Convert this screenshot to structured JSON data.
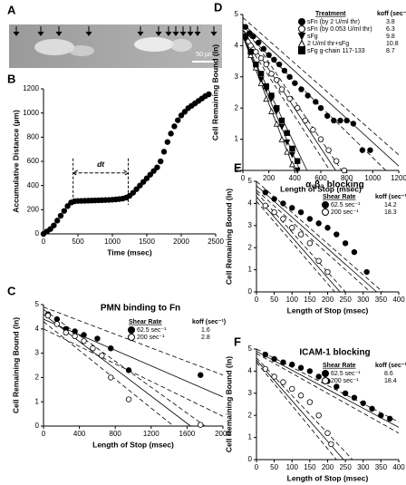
{
  "panel_labels": [
    "A",
    "B",
    "C",
    "D",
    "E",
    "F"
  ],
  "image": {
    "scale_label": "50 µm"
  },
  "chart_data": [
    {
      "type": "scatter",
      "x_label": "Time (msec)",
      "y_label": "Accumulative Distance (µm)",
      "xlim": [
        0,
        2500
      ],
      "xticks": [
        0,
        500,
        1000,
        1500,
        2000,
        2500
      ],
      "ylim": [
        0,
        1200
      ],
      "yticks": [
        0,
        200,
        400,
        600,
        800,
        1000,
        1200
      ],
      "annotation": {
        "text": "dt",
        "x": [
          430,
          1230
        ]
      },
      "series": [
        {
          "color": "#000",
          "marker": "circle",
          "fill": "#000",
          "x": [
            0,
            50,
            100,
            150,
            200,
            250,
            300,
            350,
            400,
            450,
            500,
            550,
            600,
            650,
            700,
            750,
            800,
            850,
            900,
            950,
            1000,
            1050,
            1100,
            1150,
            1200,
            1250,
            1300,
            1350,
            1400,
            1450,
            1500,
            1550,
            1600,
            1650,
            1700,
            1750,
            1800,
            1850,
            1900,
            1950,
            2000,
            2050,
            2100,
            2150,
            2200,
            2250,
            2300,
            2350,
            2400
          ],
          "values": [
            0,
            20,
            40,
            70,
            110,
            150,
            190,
            230,
            260,
            270,
            272,
            273,
            274,
            275,
            276,
            277,
            278,
            279,
            280,
            281,
            283,
            285,
            288,
            292,
            300,
            315,
            340,
            370,
            400,
            430,
            460,
            490,
            520,
            550,
            600,
            680,
            760,
            830,
            890,
            940,
            980,
            1010,
            1040,
            1060,
            1080,
            1100,
            1120,
            1140,
            1155
          ]
        }
      ]
    },
    {
      "type": "scatter",
      "title": "PMN binding to Fn",
      "x_label": "Length of Stop (msec)",
      "y_label": "Cell Remaining Bound (ln)",
      "xlim": [
        0,
        2000
      ],
      "xticks": [
        0,
        400,
        800,
        1200,
        1600,
        2000
      ],
      "ylim": [
        0,
        5
      ],
      "yticks": [
        0,
        1,
        2,
        3,
        4,
        5
      ],
      "legend_title": "Shear Rate",
      "value_title": "koff (sec⁻¹)",
      "series": [
        {
          "name": "62.5 sec⁻¹",
          "koff": 1.6,
          "color": "#000",
          "marker": "circle",
          "fill": "#000",
          "x": [
            50,
            150,
            250,
            350,
            450,
            600,
            750,
            950,
            1750
          ],
          "values": [
            4.6,
            4.4,
            4.0,
            3.9,
            3.75,
            3.6,
            3.2,
            2.3,
            2.1
          ]
        },
        {
          "name": "200 sec⁻¹",
          "koff": 2.8,
          "color": "#000",
          "marker": "circle",
          "fill": "#fff",
          "x": [
            50,
            150,
            250,
            350,
            450,
            550,
            650,
            750,
            950,
            1750
          ],
          "values": [
            4.55,
            4.2,
            3.85,
            3.7,
            3.5,
            3.2,
            2.9,
            2.0,
            1.1,
            0.05
          ]
        }
      ],
      "fit_lines": [
        {
          "style": "solid",
          "x": [
            0,
            2000
          ],
          "values": [
            4.4,
            1.2
          ]
        },
        {
          "style": "solid",
          "x": [
            0,
            1640
          ],
          "values": [
            4.6,
            0
          ]
        },
        {
          "style": "dashed",
          "x": [
            0,
            2000
          ],
          "values": [
            4.9,
            2.1
          ]
        },
        {
          "style": "dashed",
          "x": [
            0,
            2000
          ],
          "values": [
            4.0,
            0.4
          ]
        },
        {
          "style": "dashed",
          "x": [
            0,
            1800
          ],
          "values": [
            4.8,
            0
          ]
        },
        {
          "style": "dashed",
          "x": [
            0,
            1450
          ],
          "values": [
            4.3,
            0
          ]
        }
      ]
    },
    {
      "type": "scatter",
      "x_label": "Length of Stop (msec)",
      "y_label": "Cell Remaining Bound (ln)",
      "xlim": [
        0,
        1200
      ],
      "xticks": [
        0,
        200,
        400,
        600,
        800,
        1000,
        1200
      ],
      "ylim": [
        0,
        5
      ],
      "yticks": [
        0,
        1,
        2,
        3,
        4,
        5
      ],
      "legend_title": "Treatment",
      "value_title": "koff (sec⁻¹)",
      "series": [
        {
          "name": "sFn (by 2 U/ml thr)",
          "koff": 3.8,
          "color": "#000",
          "marker": "circle",
          "fill": "#000",
          "x": [
            20,
            50,
            80,
            120,
            160,
            200,
            240,
            280,
            320,
            360,
            400,
            450,
            500,
            560,
            600,
            650,
            700,
            750,
            800,
            850,
            920,
            980
          ],
          "values": [
            4.6,
            4.4,
            4.3,
            4.1,
            3.9,
            3.7,
            3.55,
            3.4,
            3.2,
            3.0,
            2.8,
            2.6,
            2.4,
            2.2,
            2.0,
            1.75,
            1.6,
            1.6,
            1.6,
            1.5,
            0.65,
            0.65
          ]
        },
        {
          "name": "sFn (by 0.053 U/ml thr)",
          "koff": 6.3,
          "color": "#000",
          "marker": "circle",
          "fill": "#fff",
          "x": [
            20,
            60,
            100,
            140,
            180,
            220,
            260,
            300,
            360,
            420,
            480,
            540,
            600,
            660,
            720,
            780
          ],
          "values": [
            4.3,
            4.0,
            3.8,
            3.6,
            3.4,
            3.1,
            2.9,
            2.6,
            2.3,
            2.0,
            1.6,
            1.3,
            1.0,
            0.65,
            0.3,
            0.0
          ]
        },
        {
          "name": "sFg",
          "koff": 9.8,
          "color": "#000",
          "marker": "tri-down",
          "fill": "#000",
          "x": [
            20,
            60,
            100,
            140,
            180,
            220,
            260,
            300,
            340,
            380,
            420
          ],
          "values": [
            4.2,
            3.8,
            3.3,
            2.9,
            2.6,
            2.3,
            1.9,
            1.4,
            0.9,
            0.5,
            0.0
          ]
        },
        {
          "name": "2 U/ml thr+sFg",
          "koff": 10.8,
          "color": "#000",
          "marker": "tri-up",
          "fill": "#fff",
          "x": [
            20,
            60,
            100,
            140,
            180,
            220,
            260,
            300,
            340,
            380
          ],
          "values": [
            4.3,
            3.7,
            3.3,
            2.8,
            2.3,
            1.9,
            1.5,
            1.0,
            0.6,
            0.2
          ]
        },
        {
          "name": "sFg g-chain 117-133",
          "koff": 8.7,
          "color": "#000",
          "marker": "square",
          "fill": "#000",
          "x": [
            20,
            60,
            100,
            140,
            180,
            220,
            260,
            300,
            340,
            380,
            420
          ],
          "values": [
            4.3,
            3.8,
            3.4,
            3.1,
            2.7,
            2.4,
            2.0,
            1.6,
            1.2,
            0.7,
            0.3
          ]
        }
      ],
      "fit_lines": [
        {
          "style": "solid",
          "x": [
            0,
            1200
          ],
          "values": [
            4.7,
            0.14
          ]
        },
        {
          "style": "solid",
          "x": [
            0,
            714
          ],
          "values": [
            4.5,
            0
          ]
        },
        {
          "style": "solid",
          "x": [
            0,
            439
          ],
          "values": [
            4.3,
            0
          ]
        },
        {
          "style": "solid",
          "x": [
            0,
            398
          ],
          "values": [
            4.3,
            0
          ]
        },
        {
          "style": "solid",
          "x": [
            0,
            494
          ],
          "values": [
            4.3,
            0
          ]
        },
        {
          "style": "dashed",
          "x": [
            0,
            1200
          ],
          "values": [
            4.9,
            0.5
          ]
        },
        {
          "style": "dashed",
          "x": [
            0,
            1100
          ],
          "values": [
            4.5,
            0
          ]
        },
        {
          "style": "dashed",
          "x": [
            0,
            760
          ],
          "values": [
            4.7,
            0
          ]
        },
        {
          "style": "dashed",
          "x": [
            0,
            670
          ],
          "values": [
            4.3,
            0
          ]
        }
      ]
    },
    {
      "type": "scatter",
      "title": "αᵥβ₃ blocking",
      "x_label": "Length of Stop (msec)",
      "y_label": "Cell Remaining Bound (ln)",
      "xlim": [
        0,
        400
      ],
      "xticks": [
        0,
        50,
        100,
        150,
        200,
        250,
        300,
        350,
        400
      ],
      "ylim": [
        0,
        5
      ],
      "yticks": [
        0,
        1,
        2,
        3,
        4,
        5
      ],
      "legend_title": "Shear Rate",
      "value_title": "koff (sec⁻¹)",
      "series": [
        {
          "name": "62.5 sec⁻¹",
          "koff": 14.2,
          "color": "#000",
          "marker": "circle",
          "fill": "#000",
          "x": [
            25,
            50,
            75,
            100,
            125,
            150,
            175,
            200,
            225,
            250,
            275,
            310
          ],
          "values": [
            4.5,
            4.2,
            4.0,
            3.8,
            3.6,
            3.3,
            3.1,
            2.9,
            2.6,
            2.2,
            1.8,
            0.9
          ]
        },
        {
          "name": "200 sec⁻¹",
          "koff": 18.3,
          "color": "#000",
          "marker": "circle",
          "fill": "#fff",
          "x": [
            25,
            50,
            75,
            100,
            125,
            150,
            175,
            200
          ],
          "values": [
            3.9,
            3.6,
            3.3,
            2.9,
            2.6,
            2.2,
            1.4,
            0.9
          ]
        }
      ],
      "fit_lines": [
        {
          "style": "solid",
          "x": [
            0,
            338
          ],
          "values": [
            4.8,
            0
          ]
        },
        {
          "style": "solid",
          "x": [
            0,
            235
          ],
          "values": [
            4.3,
            0
          ]
        },
        {
          "style": "dashed",
          "x": [
            0,
            355
          ],
          "values": [
            5.0,
            0
          ]
        },
        {
          "style": "dashed",
          "x": [
            0,
            320
          ],
          "values": [
            4.6,
            0
          ]
        },
        {
          "style": "dashed",
          "x": [
            0,
            250
          ],
          "values": [
            4.5,
            0
          ]
        },
        {
          "style": "dashed",
          "x": [
            0,
            220
          ],
          "values": [
            4.1,
            0
          ]
        }
      ]
    },
    {
      "type": "scatter",
      "title": "ICAM-1 blocking",
      "x_label": "Length of Stop (msec)",
      "y_label": "Cell Remaining Bound (ln)",
      "xlim": [
        0,
        400
      ],
      "xticks": [
        0,
        50,
        100,
        150,
        200,
        250,
        300,
        350,
        400
      ],
      "ylim": [
        0,
        5
      ],
      "yticks": [
        0,
        1,
        2,
        3,
        4,
        5
      ],
      "legend_title": "Shear Rate",
      "value_title": "koff (sec⁻¹)",
      "series": [
        {
          "name": "62.5 sec⁻¹",
          "koff": 8.6,
          "color": "#000",
          "marker": "circle",
          "fill": "#000",
          "x": [
            25,
            50,
            75,
            100,
            125,
            150,
            175,
            200,
            225,
            250,
            275,
            300,
            325,
            350,
            375
          ],
          "values": [
            4.75,
            4.55,
            4.4,
            4.3,
            4.15,
            4.0,
            3.75,
            3.55,
            3.3,
            3.0,
            2.8,
            2.55,
            2.3,
            2.0,
            1.85
          ]
        },
        {
          "name": "200 sec⁻¹",
          "koff": 18.4,
          "color": "#000",
          "marker": "circle",
          "fill": "#fff",
          "x": [
            25,
            50,
            75,
            100,
            125,
            150,
            175,
            200,
            210
          ],
          "values": [
            4.1,
            3.75,
            3.5,
            3.2,
            2.9,
            2.6,
            2.0,
            1.2,
            0.7
          ]
        }
      ],
      "fit_lines": [
        {
          "style": "solid",
          "x": [
            0,
            400
          ],
          "values": [
            4.9,
            1.46
          ]
        },
        {
          "style": "solid",
          "x": [
            0,
            245
          ],
          "values": [
            4.5,
            0
          ]
        },
        {
          "style": "dashed",
          "x": [
            0,
            400
          ],
          "values": [
            5.0,
            1.7
          ]
        },
        {
          "style": "dashed",
          "x": [
            0,
            400
          ],
          "values": [
            4.8,
            1.2
          ]
        },
        {
          "style": "dashed",
          "x": [
            0,
            270
          ],
          "values": [
            4.6,
            0
          ]
        },
        {
          "style": "dashed",
          "x": [
            0,
            225
          ],
          "values": [
            4.4,
            0
          ]
        }
      ]
    }
  ]
}
